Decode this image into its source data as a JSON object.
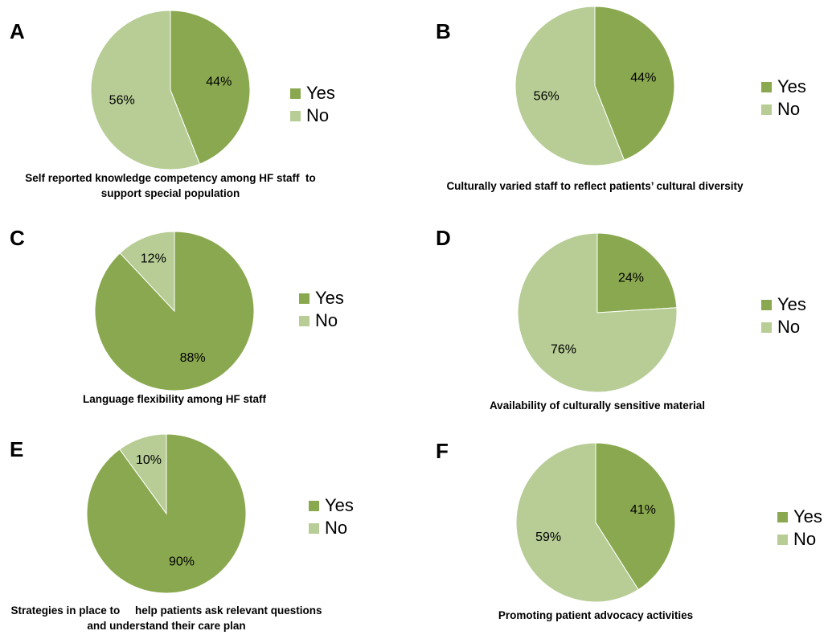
{
  "colors": {
    "yes": "#8aa84f",
    "no": "#b7cd95",
    "stroke": "#ffffff"
  },
  "chart_data": [
    {
      "type": "pie",
      "panel": "A",
      "title_lines": [
        "Self reported knowledge competency among HF staff  to",
        "support special population"
      ],
      "slices": [
        {
          "name": "Yes",
          "value": 44,
          "label": "44%"
        },
        {
          "name": "No",
          "value": 56,
          "label": "56%"
        }
      ],
      "legend": [
        "Yes",
        "No"
      ],
      "legend_position": "right"
    },
    {
      "type": "pie",
      "panel": "B",
      "title_lines": [
        "Culturally varied staff to reflect patients’ cultural diversity"
      ],
      "slices": [
        {
          "name": "Yes",
          "value": 44,
          "label": "44%"
        },
        {
          "name": "No",
          "value": 56,
          "label": "56%"
        }
      ],
      "legend": [
        "Yes",
        "No"
      ],
      "legend_position": "right"
    },
    {
      "type": "pie",
      "panel": "C",
      "title_lines": [
        "Language flexibility among HF staff"
      ],
      "slices": [
        {
          "name": "Yes",
          "value": 88,
          "label": "88%"
        },
        {
          "name": "No",
          "value": 12,
          "label": "12%"
        }
      ],
      "legend": [
        "Yes",
        "No"
      ],
      "legend_position": "right"
    },
    {
      "type": "pie",
      "panel": "D",
      "title_lines": [
        "Availability of culturally sensitive material"
      ],
      "slices": [
        {
          "name": "Yes",
          "value": 24,
          "label": "24%"
        },
        {
          "name": "No",
          "value": 76,
          "label": "76%"
        }
      ],
      "legend": [
        "Yes",
        "No"
      ],
      "legend_position": "right"
    },
    {
      "type": "pie",
      "panel": "E",
      "title_lines": [
        "Strategies in place to     help patients ask relevant questions",
        "and understand their care plan"
      ],
      "slices": [
        {
          "name": "Yes",
          "value": 90,
          "label": "90%"
        },
        {
          "name": "No",
          "value": 10,
          "label": "10%"
        }
      ],
      "legend": [
        "Yes",
        "No"
      ],
      "legend_position": "right"
    },
    {
      "type": "pie",
      "panel": "F",
      "title_lines": [
        "Promoting patient advocacy activities"
      ],
      "slices": [
        {
          "name": "Yes",
          "value": 41,
          "label": "41%"
        },
        {
          "name": "No",
          "value": 59,
          "label": "59%"
        }
      ],
      "legend": [
        "Yes",
        "No"
      ],
      "legend_position": "right"
    }
  ]
}
